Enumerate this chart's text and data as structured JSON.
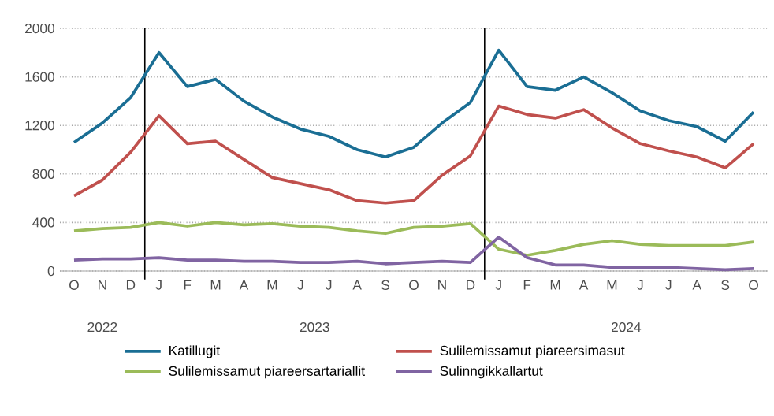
{
  "chart_data": {
    "type": "line",
    "categories": [
      "O",
      "N",
      "D",
      "J",
      "F",
      "M",
      "A",
      "M",
      "J",
      "J",
      "A",
      "S",
      "O",
      "N",
      "D",
      "J",
      "F",
      "M",
      "A",
      "M",
      "J",
      "J",
      "A",
      "S",
      "O"
    ],
    "series": [
      {
        "name": "Katillugit",
        "color": "#1a6e94",
        "values": [
          1060,
          1220,
          1430,
          1800,
          1520,
          1580,
          1400,
          1270,
          1170,
          1110,
          1000,
          940,
          1020,
          1220,
          1390,
          1820,
          1520,
          1490,
          1600,
          1470,
          1320,
          1240,
          1190,
          1070,
          1310
        ]
      },
      {
        "name": "Sulilemissamut piareersimasut",
        "color": "#c0504d",
        "values": [
          620,
          750,
          980,
          1280,
          1050,
          1070,
          920,
          770,
          720,
          670,
          580,
          560,
          580,
          790,
          950,
          1360,
          1290,
          1260,
          1330,
          1180,
          1050,
          990,
          940,
          850,
          1050
        ]
      },
      {
        "name": "Sulilemissamut piareersartariallit",
        "color": "#9bbb59",
        "values": [
          330,
          350,
          360,
          400,
          370,
          400,
          380,
          390,
          370,
          360,
          330,
          310,
          360,
          370,
          390,
          180,
          130,
          170,
          220,
          250,
          220,
          210,
          210,
          210,
          240
        ]
      },
      {
        "name": "Sulinngikkallartut",
        "color": "#8064a2",
        "values": [
          90,
          100,
          100,
          110,
          90,
          90,
          80,
          80,
          70,
          70,
          80,
          60,
          70,
          80,
          70,
          280,
          110,
          50,
          50,
          30,
          30,
          30,
          20,
          10,
          20
        ]
      }
    ],
    "ylim": [
      0,
      2000
    ],
    "yticks": [
      0,
      400,
      800,
      1200,
      1600,
      2000
    ],
    "grid": "y",
    "legend": "bottom",
    "marker": "none",
    "line_style": "solid",
    "annotations": [
      "2022",
      "2023",
      "2024"
    ]
  }
}
